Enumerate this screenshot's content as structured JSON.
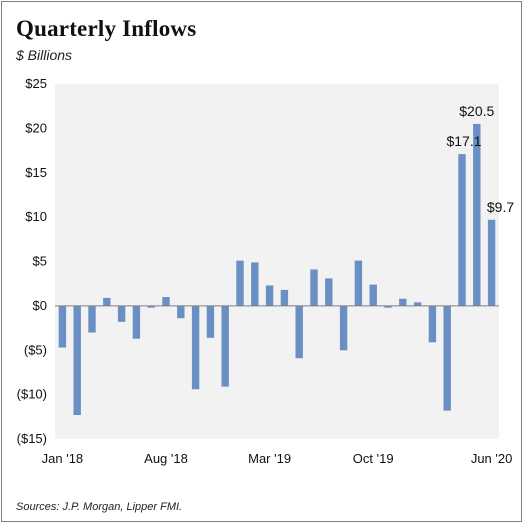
{
  "chart_data": {
    "type": "bar",
    "title": "Quarterly Inflows",
    "subtitle": "$ Billions",
    "source": "Sources: J.P. Morgan, Lipper FMI.",
    "ylim": [
      -15,
      25
    ],
    "yticks": [
      {
        "value": 25,
        "label": "$25"
      },
      {
        "value": 20,
        "label": "$20"
      },
      {
        "value": 15,
        "label": "$15"
      },
      {
        "value": 10,
        "label": "$10"
      },
      {
        "value": 5,
        "label": "$5"
      },
      {
        "value": 0,
        "label": "$0"
      },
      {
        "value": -5,
        "label": "($5)"
      },
      {
        "value": -10,
        "label": "($10)"
      },
      {
        "value": -15,
        "label": "($15)"
      }
    ],
    "xticks": [
      {
        "index": 0,
        "label": "Jan '18"
      },
      {
        "index": 7,
        "label": "Aug '18"
      },
      {
        "index": 14,
        "label": "Mar '19"
      },
      {
        "index": 21,
        "label": "Oct '19"
      },
      {
        "index": 29,
        "label": "Jun '20"
      }
    ],
    "bar_color": "#6a8fc4",
    "plot_bg": "#f2f2f2",
    "grid": false,
    "values": [
      -4.7,
      -12.3,
      -3.0,
      0.9,
      -1.8,
      -3.7,
      -0.2,
      1.0,
      -1.4,
      -9.4,
      -3.6,
      -9.1,
      5.1,
      4.9,
      2.3,
      1.8,
      -5.9,
      4.1,
      3.1,
      -5.0,
      5.1,
      2.4,
      -0.2,
      0.8,
      0.4,
      -4.1,
      -11.8,
      17.1,
      20.5,
      9.7
    ],
    "data_labels": [
      {
        "index": 27,
        "label": "$17.1"
      },
      {
        "index": 28,
        "label": "$20.5"
      },
      {
        "index": 29,
        "label": "$9.7"
      }
    ]
  }
}
